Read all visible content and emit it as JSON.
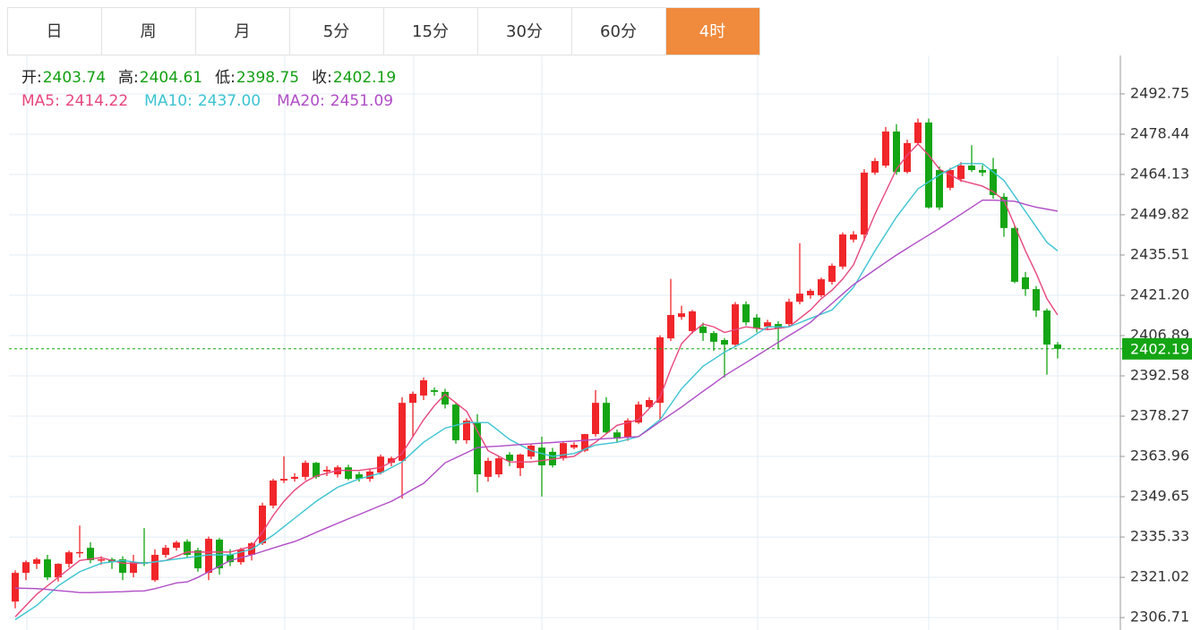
{
  "tabs": [
    "日",
    "周",
    "月",
    "5分",
    "15分",
    "30分",
    "60分",
    "4时"
  ],
  "active_tab": 7,
  "header": [
    {
      "label": "开:",
      "value": "2403.74"
    },
    {
      "label": "高:",
      "value": "2404.61"
    },
    {
      "label": "低:",
      "value": "2398.75"
    },
    {
      "label": "收:",
      "value": "2402.19"
    }
  ],
  "chart_data": {
    "type": "candlestick",
    "up_color": "#f0262a",
    "down_color": "#14a514",
    "grid": true,
    "ylim": [
      2302.3,
      2506.4
    ],
    "yticks": [
      2306.71,
      2321.02,
      2335.33,
      2349.65,
      2363.96,
      2378.27,
      2392.58,
      2406.89,
      {
        "value": 2421.2,
        "label": "2421.20"
      },
      2435.51,
      2449.82,
      2464.13,
      2478.44,
      2492.75
    ],
    "last_price": 2402.19,
    "last_price_color": "#14a514",
    "open": [
      2312.4,
      2322.6,
      2325.8,
      2327.4,
      2321.0,
      2325.8,
      2329.9,
      2331.5,
      2327.1,
      2327.4,
      2327.4,
      2322.6,
      2326.4,
      2320.0,
      2329.0,
      2331.5,
      2333.7,
      2330.6,
      2322.6,
      2334.4,
      2329.0,
      2326.4,
      2329.0,
      2333.1,
      2346.5,
      2355.4,
      2356.0,
      2356.7,
      2361.7,
      2358.6,
      2357.6,
      2360.1,
      2357.6,
      2356.0,
      2358.2,
      2361.7,
      2362.4,
      2383.0,
      2385.6,
      2387.5,
      2386.9,
      2382.4,
      2369.7,
      2376.0,
      2356.7,
      2357.6,
      2364.6,
      2359.8,
      2363.9,
      2367.1,
      2365.6,
      2363.3,
      2367.1,
      2366.0,
      2371.9,
      2383.0,
      2372.5,
      2370.9,
      2376.0,
      2381.5,
      2383.0,
      2405.9,
      2413.5,
      2408.5,
      2410.1,
      2407.8,
      2405.3,
      2403.7,
      2418.0,
      2413.3,
      2410.1,
      2411.0,
      2411.0,
      2418.9,
      2421.2,
      2421.2,
      2426.0,
      2431.4,
      2441.0,
      2442.8,
      2464.8,
      2467.3,
      2479.4,
      2465.0,
      2475.3,
      2482.6,
      2465.7,
      2459.4,
      2462.5,
      2467.3,
      2465.7,
      2466.0,
      2456.2,
      2445.1,
      2427.6,
      2423.4,
      2415.8,
      2403.74
    ],
    "high": [
      2323.5,
      2327.0,
      2328.0,
      2329.0,
      2326.0,
      2330.5,
      2339.4,
      2333.5,
      2328.5,
      2328.0,
      2328.5,
      2329.0,
      2338.5,
      2331.0,
      2332.5,
      2334.0,
      2334.5,
      2331.5,
      2335.5,
      2335.0,
      2331.0,
      2331.5,
      2333.5,
      2347.5,
      2356.0,
      2364.0,
      2358.0,
      2362.5,
      2362.0,
      2360.5,
      2360.8,
      2361.0,
      2358.5,
      2359.5,
      2364.6,
      2363.9,
      2385.0,
      2387.0,
      2392.0,
      2388.5,
      2388.0,
      2383.0,
      2377.5,
      2379.0,
      2363.5,
      2364.0,
      2365.5,
      2365.0,
      2368.5,
      2371.0,
      2367.0,
      2369.0,
      2369.0,
      2372.0,
      2387.5,
      2385.0,
      2373.5,
      2377.5,
      2383.5,
      2385.0,
      2407.0,
      2427.0,
      2417.5,
      2416.0,
      2411.5,
      2408.5,
      2406.0,
      2418.8,
      2419.0,
      2414.5,
      2412.5,
      2412.0,
      2420.0,
      2439.7,
      2423.5,
      2427.5,
      2432.5,
      2443.5,
      2444.0,
      2466.0,
      2470.0,
      2481.0,
      2482.0,
      2476.5,
      2484.0,
      2484.0,
      2467.0,
      2466.5,
      2468.5,
      2474.5,
      2467.5,
      2470.0,
      2457.5,
      2446.0,
      2429.5,
      2424.5,
      2416.5,
      2404.61
    ],
    "low": [
      2310.0,
      2320.0,
      2324.0,
      2320.0,
      2319.5,
      2324.5,
      2328.0,
      2326.0,
      2325.5,
      2324.0,
      2320.0,
      2321.0,
      2325.0,
      2319.4,
      2328.0,
      2330.5,
      2328.0,
      2323.0,
      2320.0,
      2322.0,
      2325.0,
      2325.5,
      2327.0,
      2332.5,
      2345.5,
      2354.5,
      2355.0,
      2355.5,
      2356.0,
      2357.0,
      2356.5,
      2355.5,
      2355.0,
      2355.0,
      2357.5,
      2360.5,
      2349.0,
      2371.0,
      2384.0,
      2385.5,
      2381.0,
      2368.5,
      2368.5,
      2351.2,
      2355.0,
      2356.5,
      2360.5,
      2357.0,
      2363.0,
      2349.7,
      2360.0,
      2362.5,
      2366.5,
      2365.5,
      2371.0,
      2372.0,
      2369.0,
      2369.5,
      2375.5,
      2381.0,
      2377.0,
      2405.0,
      2412.5,
      2407.5,
      2405.0,
      2401.5,
      2392.0,
      2403.0,
      2410.5,
      2408.0,
      2409.0,
      2402.1,
      2410.0,
      2418.0,
      2420.0,
      2420.5,
      2425.0,
      2430.5,
      2440.0,
      2440.5,
      2464.0,
      2466.5,
      2464.0,
      2464.5,
      2474.5,
      2452.0,
      2451.5,
      2458.5,
      2461.5,
      2465.0,
      2463.5,
      2455.5,
      2442.0,
      2425.5,
      2421.0,
      2413.5,
      2393.0,
      2398.75
    ],
    "close": [
      2322.6,
      2326.4,
      2327.4,
      2321.0,
      2325.8,
      2329.9,
      2330.0,
      2327.1,
      2327.4,
      2326.4,
      2322.6,
      2326.4,
      2325.8,
      2329.0,
      2331.5,
      2333.4,
      2329.0,
      2324.2,
      2334.7,
      2324.2,
      2326.4,
      2330.9,
      2333.1,
      2346.5,
      2355.4,
      2356.0,
      2356.7,
      2361.7,
      2356.7,
      2359.2,
      2360.1,
      2356.0,
      2356.0,
      2358.6,
      2363.9,
      2363.3,
      2383.0,
      2386.2,
      2391.0,
      2386.9,
      2382.4,
      2369.7,
      2376.7,
      2357.6,
      2362.4,
      2363.3,
      2362.4,
      2364.6,
      2367.8,
      2360.8,
      2360.8,
      2368.7,
      2368.1,
      2371.9,
      2383.0,
      2372.5,
      2370.3,
      2376.7,
      2382.4,
      2384.0,
      2406.3,
      2414.2,
      2414.8,
      2415.5,
      2407.8,
      2404.7,
      2403.7,
      2418.0,
      2411.6,
      2409.4,
      2411.6,
      2409.4,
      2418.9,
      2421.8,
      2422.8,
      2426.9,
      2431.7,
      2442.8,
      2442.8,
      2464.8,
      2468.9,
      2479.4,
      2465.0,
      2475.3,
      2482.6,
      2452.4,
      2452.4,
      2465.7,
      2467.3,
      2465.7,
      2464.8,
      2456.8,
      2445.1,
      2426.0,
      2423.4,
      2415.8,
      2403.7,
      2402.19
    ],
    "series": [
      {
        "name": "MA5:",
        "last": "2414.22",
        "color": "#e8467c",
        "values": [
          2307,
          2311,
          2315,
          2318,
          2321,
          2324,
          2327,
          2327.5,
          2328,
          2327,
          2326,
          2326,
          2326,
          2326.5,
          2327,
          2328.5,
          2330,
          2330,
          2330,
          2330,
          2330,
          2331,
          2332,
          2337,
          2343,
          2348,
          2352,
          2355,
          2357,
          2358,
          2359,
          2359,
          2359,
          2359.5,
          2360,
          2362,
          2365,
          2371,
          2377,
          2382,
          2386,
          2383,
          2380,
          2373,
          2366,
          2364,
          2362,
          2362,
          2362,
          2362.5,
          2363,
          2363.5,
          2364,
          2366.5,
          2369,
          2372,
          2375,
          2376,
          2377,
          2381,
          2385,
          2395,
          2404,
          2408,
          2411,
          2410,
          2408,
          2409,
          2410,
          2409.5,
          2409,
          2409.5,
          2410,
          2413,
          2416,
          2420,
          2423,
          2427,
          2432,
          2441,
          2450,
          2458,
          2466,
          2471,
          2475,
          2471,
          2466,
          2464,
          2462,
          2461,
          2460,
          2458,
          2455,
          2446,
          2437,
          2429,
          2420,
          2414.22
        ]
      },
      {
        "name": "MA10:",
        "last": "2437.00",
        "color": "#3cc4d2",
        "values": [
          2306,
          2308.5,
          2311,
          2314.5,
          2318,
          2320.5,
          2323,
          2324.5,
          2326,
          2326.5,
          2327,
          2326.5,
          2326,
          2326.5,
          2327,
          2327.5,
          2328,
          2328.5,
          2329,
          2329,
          2329,
          2330,
          2331,
          2333.5,
          2336,
          2339,
          2342,
          2345,
          2348,
          2350.5,
          2353,
          2354.5,
          2356,
          2357,
          2358,
          2360,
          2362,
          2365.5,
          2369,
          2371.5,
          2374,
          2375,
          2376,
          2376,
          2376,
          2373,
          2370,
          2368,
          2366,
          2365,
          2364,
          2364.5,
          2365,
          2366.5,
          2368,
          2368.5,
          2369,
          2370,
          2371,
          2374,
          2377,
          2382.5,
          2388,
          2392,
          2396,
          2398.5,
          2401,
          2403,
          2405,
          2407.5,
          2410,
          2410,
          2410,
          2411.5,
          2413,
          2414.5,
          2416,
          2420,
          2424,
          2430.5,
          2437,
          2443,
          2449,
          2454,
          2459,
          2461.5,
          2464,
          2466,
          2468,
          2468,
          2468,
          2465,
          2462,
          2456.5,
          2451,
          2445.5,
          2440,
          2437.0
        ]
      },
      {
        "name": "MA20:",
        "last": "2451.09",
        "color": "#b04cc6",
        "values": [
          2317.2,
          2317.1,
          2317,
          2316.7,
          2316.3,
          2316,
          2315.6,
          2315.6,
          2315.7,
          2315.8,
          2315.9,
          2316.1,
          2316.2,
          2317,
          2318,
          2319,
          2319.4,
          2321,
          2323,
          2325,
          2327,
          2328,
          2329,
          2330.2,
          2331.4,
          2332.6,
          2333.7,
          2335.3,
          2337,
          2338.6,
          2340.2,
          2341.8,
          2343.3,
          2344.9,
          2346.5,
          2348,
          2350.1,
          2352.3,
          2354.4,
          2358,
          2361.7,
          2363.5,
          2365.3,
          2367.1,
          2367.4,
          2367.6,
          2367.9,
          2368.2,
          2368.4,
          2368.7,
          2368.9,
          2369.2,
          2369.4,
          2369.7,
          2370,
          2370.3,
          2370.5,
          2370.8,
          2371,
          2373.6,
          2376.3,
          2378.9,
          2381.5,
          2384.3,
          2387.1,
          2389.8,
          2392.6,
          2395,
          2397.3,
          2399.7,
          2402.1,
          2404.5,
          2406.9,
          2409.2,
          2411.6,
          2415,
          2418.3,
          2421.7,
          2425,
          2427.6,
          2430.3,
          2432.9,
          2435.5,
          2437.9,
          2440.3,
          2442.6,
          2445,
          2447.5,
          2450,
          2452.5,
          2455,
          2455,
          2454.8,
          2454.6,
          2453.5,
          2452.5,
          2451.8,
          2451.09
        ]
      }
    ]
  }
}
